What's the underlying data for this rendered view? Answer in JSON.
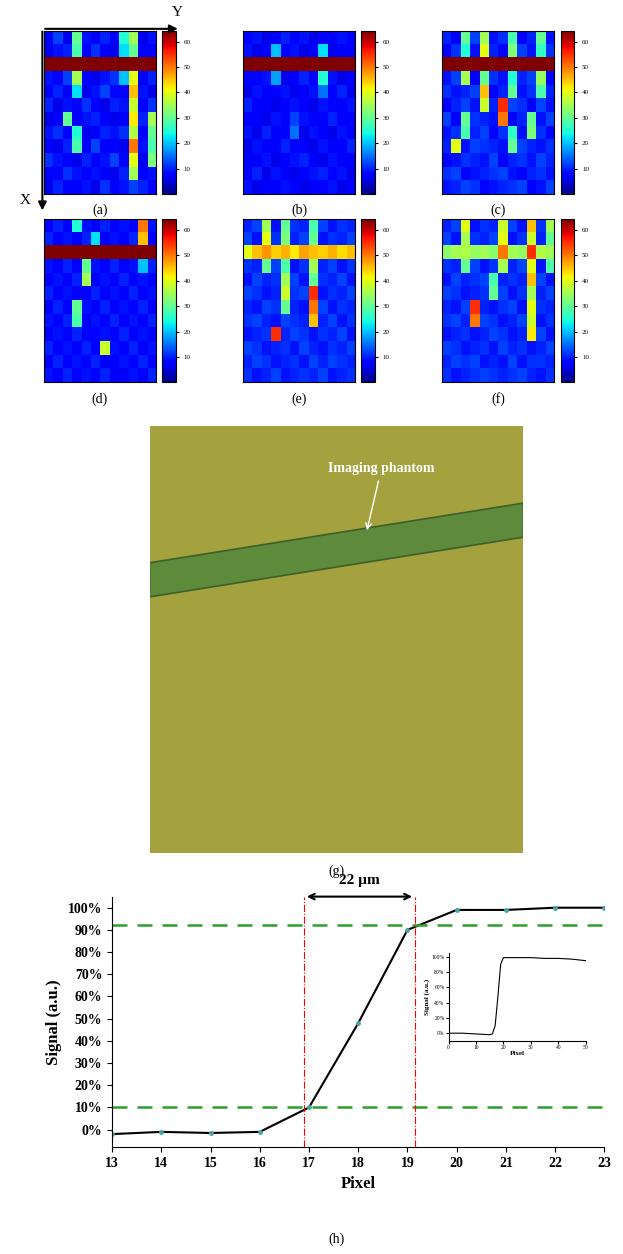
{
  "chart_data": [
    {
      "type": "heatmap",
      "label": "(a)",
      "tick_labels": false,
      "color_range": [
        0,
        64
      ],
      "color_ticks": [
        10,
        20,
        30,
        40,
        50,
        60
      ],
      "cells": [
        [
          8,
          12,
          6,
          30,
          9,
          7,
          10,
          8,
          25,
          35,
          6,
          9
        ],
        [
          6,
          9,
          10,
          28,
          7,
          11,
          8,
          6,
          22,
          30,
          8,
          7
        ],
        [
          64,
          64,
          64,
          64,
          64,
          64,
          64,
          64,
          64,
          64,
          64,
          64
        ],
        [
          9,
          7,
          12,
          35,
          8,
          6,
          9,
          11,
          20,
          40,
          7,
          10
        ],
        [
          7,
          10,
          8,
          22,
          6,
          9,
          12,
          7,
          8,
          45,
          9,
          6
        ],
        [
          10,
          6,
          9,
          8,
          11,
          7,
          6,
          10,
          9,
          38,
          8,
          11
        ],
        [
          6,
          8,
          30,
          7,
          9,
          10,
          8,
          6,
          7,
          42,
          10,
          35
        ],
        [
          9,
          11,
          7,
          25,
          6,
          8,
          10,
          9,
          11,
          36,
          7,
          30
        ],
        [
          7,
          6,
          10,
          28,
          8,
          12,
          7,
          8,
          6,
          50,
          9,
          28
        ],
        [
          11,
          9,
          8,
          6,
          10,
          7,
          9,
          12,
          8,
          40,
          6,
          32
        ],
        [
          8,
          7,
          11,
          9,
          7,
          9,
          8,
          6,
          10,
          35,
          8,
          9
        ],
        [
          6,
          10,
          7,
          8,
          9,
          6,
          11,
          7,
          9,
          12,
          10,
          7
        ]
      ]
    },
    {
      "type": "heatmap",
      "label": "(b)",
      "tick_labels": false,
      "color_range": [
        0,
        64
      ],
      "color_ticks": [
        10,
        20,
        30,
        40,
        50,
        60
      ],
      "cells": [
        [
          7,
          9,
          6,
          8,
          10,
          7,
          9,
          6,
          8,
          7,
          9,
          8
        ],
        [
          9,
          6,
          8,
          20,
          7,
          9,
          6,
          8,
          22,
          6,
          8,
          7
        ],
        [
          64,
          64,
          64,
          64,
          64,
          64,
          64,
          64,
          64,
          64,
          64,
          64
        ],
        [
          8,
          7,
          9,
          18,
          6,
          8,
          10,
          7,
          25,
          9,
          6,
          8
        ],
        [
          6,
          9,
          7,
          8,
          9,
          6,
          8,
          9,
          15,
          7,
          10,
          6
        ],
        [
          10,
          7,
          8,
          6,
          8,
          9,
          7,
          6,
          9,
          8,
          7,
          9
        ],
        [
          7,
          8,
          6,
          9,
          7,
          12,
          9,
          8,
          7,
          10,
          8,
          7
        ],
        [
          9,
          6,
          10,
          7,
          8,
          15,
          6,
          9,
          8,
          6,
          9,
          8
        ],
        [
          6,
          9,
          7,
          8,
          10,
          7,
          8,
          6,
          9,
          8,
          7,
          10
        ],
        [
          8,
          7,
          9,
          6,
          7,
          9,
          10,
          8,
          6,
          9,
          8,
          7
        ],
        [
          7,
          10,
          6,
          9,
          8,
          6,
          7,
          9,
          10,
          7,
          9,
          6
        ],
        [
          9,
          6,
          8,
          7,
          9,
          8,
          6,
          7,
          8,
          9,
          6,
          8
        ]
      ]
    },
    {
      "type": "heatmap",
      "label": "(c)",
      "tick_labels": false,
      "color_range": [
        0,
        64
      ],
      "color_ticks": [
        10,
        20,
        30,
        40,
        50,
        60
      ],
      "cells": [
        [
          10,
          8,
          30,
          12,
          35,
          9,
          11,
          28,
          8,
          10,
          30,
          9
        ],
        [
          8,
          11,
          25,
          9,
          40,
          10,
          8,
          32,
          12,
          9,
          26,
          11
        ],
        [
          64,
          64,
          64,
          64,
          64,
          64,
          64,
          64,
          64,
          64,
          64,
          64
        ],
        [
          9,
          12,
          35,
          8,
          30,
          11,
          9,
          25,
          10,
          12,
          34,
          8
        ],
        [
          11,
          9,
          10,
          12,
          45,
          8,
          10,
          30,
          9,
          11,
          28,
          10
        ],
        [
          8,
          10,
          12,
          9,
          38,
          10,
          55,
          12,
          11,
          8,
          12,
          9
        ],
        [
          12,
          8,
          30,
          11,
          10,
          9,
          50,
          8,
          10,
          30,
          9,
          12
        ],
        [
          9,
          11,
          28,
          10,
          12,
          8,
          11,
          26,
          9,
          32,
          11,
          8
        ],
        [
          10,
          40,
          9,
          12,
          11,
          10,
          9,
          30,
          12,
          10,
          9,
          11
        ],
        [
          8,
          9,
          11,
          10,
          9,
          12,
          8,
          10,
          11,
          9,
          12,
          10
        ],
        [
          11,
          12,
          8,
          9,
          10,
          11,
          12,
          9,
          8,
          10,
          11,
          9
        ],
        [
          9,
          10,
          12,
          11,
          8,
          9,
          10,
          11,
          12,
          8,
          9,
          12
        ]
      ]
    },
    {
      "type": "heatmap",
      "label": "(d)",
      "tick_labels": false,
      "color_range": [
        0,
        64
      ],
      "color_ticks": [
        10,
        20,
        30,
        40,
        50,
        60
      ],
      "cells": [
        [
          8,
          10,
          7,
          25,
          9,
          8,
          10,
          7,
          9,
          8,
          50,
          9
        ],
        [
          10,
          8,
          9,
          7,
          10,
          22,
          8,
          9,
          7,
          10,
          45,
          8
        ],
        [
          64,
          64,
          64,
          64,
          64,
          64,
          64,
          64,
          64,
          64,
          64,
          64
        ],
        [
          9,
          7,
          10,
          8,
          30,
          9,
          7,
          10,
          8,
          9,
          20,
          10
        ],
        [
          7,
          9,
          8,
          10,
          35,
          7,
          9,
          8,
          10,
          7,
          9,
          8
        ],
        [
          10,
          8,
          9,
          7,
          8,
          10,
          8,
          9,
          7,
          10,
          8,
          9
        ],
        [
          8,
          10,
          7,
          30,
          9,
          8,
          10,
          7,
          9,
          8,
          10,
          7
        ],
        [
          9,
          7,
          10,
          28,
          7,
          9,
          7,
          10,
          8,
          9,
          7,
          10
        ],
        [
          7,
          9,
          8,
          10,
          8,
          7,
          9,
          8,
          10,
          7,
          9,
          8
        ],
        [
          10,
          8,
          9,
          7,
          10,
          8,
          38,
          9,
          7,
          10,
          8,
          9
        ],
        [
          8,
          10,
          7,
          9,
          8,
          10,
          8,
          7,
          9,
          8,
          10,
          7
        ],
        [
          9,
          7,
          10,
          8,
          9,
          7,
          10,
          8,
          8,
          9,
          7,
          10
        ]
      ]
    },
    {
      "type": "heatmap",
      "label": "(e)",
      "tick_labels": false,
      "color_range": [
        0,
        64
      ],
      "color_ticks": [
        10,
        20,
        30,
        40,
        50,
        60
      ],
      "cells": [
        [
          10,
          12,
          35,
          9,
          30,
          11,
          10,
          28,
          12,
          9,
          11,
          10
        ],
        [
          12,
          9,
          40,
          11,
          32,
          10,
          12,
          30,
          9,
          11,
          10,
          12
        ],
        [
          40,
          45,
          48,
          44,
          46,
          42,
          47,
          45,
          44,
          46,
          43,
          45
        ],
        [
          11,
          10,
          30,
          12,
          28,
          9,
          11,
          35,
          10,
          12,
          9,
          11
        ],
        [
          9,
          12,
          10,
          11,
          35,
          12,
          9,
          30,
          11,
          10,
          12,
          9
        ],
        [
          12,
          11,
          9,
          10,
          38,
          11,
          12,
          55,
          9,
          11,
          10,
          12
        ],
        [
          10,
          9,
          12,
          11,
          30,
          10,
          9,
          50,
          12,
          9,
          11,
          10
        ],
        [
          11,
          12,
          10,
          9,
          12,
          11,
          10,
          45,
          10,
          12,
          9,
          11
        ],
        [
          9,
          10,
          11,
          55,
          10,
          12,
          11,
          9,
          11,
          10,
          12,
          9
        ],
        [
          12,
          11,
          9,
          10,
          11,
          9,
          12,
          10,
          9,
          11,
          10,
          12
        ],
        [
          10,
          12,
          11,
          9,
          10,
          11,
          9,
          12,
          10,
          12,
          11,
          10
        ],
        [
          11,
          9,
          10,
          12,
          9,
          10,
          11,
          10,
          12,
          9,
          10,
          11
        ]
      ]
    },
    {
      "type": "heatmap",
      "label": "(f)",
      "tick_labels": false,
      "color_range": [
        0,
        64
      ],
      "color_ticks": [
        10,
        20,
        30,
        40,
        50,
        60
      ],
      "cells": [
        [
          10,
          12,
          40,
          9,
          11,
          10,
          38,
          12,
          9,
          45,
          11,
          35
        ],
        [
          12,
          9,
          35,
          11,
          10,
          12,
          40,
          9,
          11,
          38,
          10,
          30
        ],
        [
          33,
          35,
          36,
          34,
          35,
          33,
          50,
          35,
          34,
          55,
          36,
          35
        ],
        [
          11,
          10,
          30,
          12,
          9,
          11,
          35,
          10,
          12,
          40,
          9,
          28
        ],
        [
          9,
          12,
          10,
          11,
          12,
          28,
          10,
          11,
          10,
          45,
          12,
          9
        ],
        [
          12,
          11,
          9,
          10,
          11,
          30,
          12,
          9,
          11,
          35,
          10,
          12
        ],
        [
          10,
          9,
          12,
          55,
          10,
          9,
          11,
          12,
          9,
          40,
          11,
          10
        ],
        [
          11,
          12,
          10,
          50,
          12,
          11,
          9,
          10,
          12,
          38,
          9,
          11
        ],
        [
          9,
          10,
          11,
          9,
          10,
          12,
          11,
          9,
          10,
          42,
          12,
          9
        ],
        [
          12,
          11,
          9,
          10,
          11,
          9,
          12,
          10,
          11,
          9,
          10,
          12
        ],
        [
          10,
          12,
          11,
          12,
          9,
          10,
          9,
          12,
          9,
          11,
          11,
          10
        ],
        [
          11,
          9,
          10,
          11,
          12,
          11,
          10,
          11,
          12,
          10,
          9,
          11
        ]
      ]
    },
    {
      "type": "line",
      "label": "(h)",
      "color": "#000000",
      "marker": "o",
      "x": [
        13,
        14,
        15,
        16,
        17,
        18,
        19,
        20,
        21,
        22,
        23
      ],
      "values": [
        -2,
        -1,
        -1.5,
        -1,
        10,
        48,
        90,
        99,
        99,
        100,
        100
      ],
      "xlabel": "Pixel",
      "ylabel": "Signal (a.u.)",
      "xlim": [
        13,
        23
      ],
      "xticks": [
        13,
        14,
        15,
        16,
        17,
        18,
        19,
        20,
        21,
        22,
        23
      ],
      "ylim": [
        -8,
        105
      ],
      "yticks": [
        {
          "value": 0,
          "label": "0%"
        },
        {
          "value": 10,
          "label": "10%"
        },
        {
          "value": 20,
          "label": "20%"
        },
        {
          "value": 30,
          "label": "30%"
        },
        {
          "value": 40,
          "label": "40%"
        },
        {
          "value": 50,
          "label": "50%"
        },
        {
          "value": 60,
          "label": "60%"
        },
        {
          "value": 70,
          "label": "70%"
        },
        {
          "value": 80,
          "label": "80%"
        },
        {
          "value": 90,
          "label": "90%"
        },
        {
          "value": 100,
          "label": "100%"
        }
      ],
      "hlines": [
        10,
        92
      ],
      "vlines": [
        16.9,
        19.15
      ],
      "span_text": "22 µm",
      "inset": {
        "type": "line",
        "color": "#000000",
        "x": [
          0,
          5,
          10,
          15,
          16,
          17,
          18,
          19,
          20,
          25,
          30,
          35,
          40,
          45,
          50
        ],
        "values": [
          0,
          0,
          -1,
          -2,
          -1,
          10,
          48,
          90,
          99,
          99,
          99,
          98,
          98,
          97,
          95
        ],
        "xlabel": "Pixel",
        "ylabel": "Signal (a.u.)",
        "xlim": [
          0,
          50
        ],
        "xticks": [
          0,
          10,
          20,
          30,
          40,
          50
        ],
        "ylim": [
          -10,
          105
        ],
        "yticks": [
          {
            "value": 0,
            "label": "0%"
          },
          {
            "value": 20,
            "label": "20%"
          },
          {
            "value": 40,
            "label": "40%"
          },
          {
            "value": 60,
            "label": "60%"
          },
          {
            "value": 80,
            "label": "80%"
          },
          {
            "value": 100,
            "label": "100%"
          }
        ]
      }
    }
  ],
  "photo": {
    "label": "(g)",
    "annotation": "Imaging phantom"
  },
  "axis_arrows": {
    "x": "X",
    "y": "Y"
  }
}
